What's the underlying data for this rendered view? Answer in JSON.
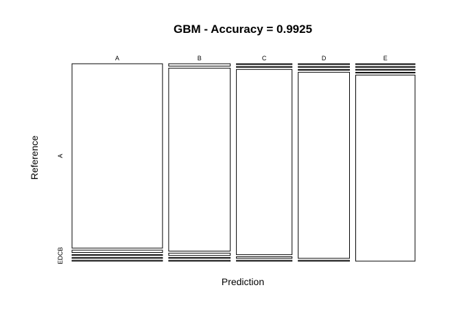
{
  "chart_data": {
    "type": "mosaic",
    "title": "GBM - Accuracy = 0.9925",
    "xlabel": "Prediction",
    "ylabel": "Reference",
    "x_categories": [
      "A",
      "B",
      "C",
      "D",
      "E"
    ],
    "y_categories": [
      "A",
      "B",
      "C",
      "D",
      "E"
    ],
    "y_tick_labels": [
      "A",
      "EDCB"
    ],
    "column_widths": [
      0.291,
      0.198,
      0.179,
      0.165,
      0.191
    ],
    "cells": [
      {
        "prediction": "A",
        "proportions": {
          "A": 0.925,
          "B": 0.012,
          "C": 0.004,
          "D": 0.004,
          "E": 0.004
        }
      },
      {
        "prediction": "B",
        "proportions": {
          "A": 0.012,
          "B": 0.938,
          "C": 0.012,
          "D": 0.004,
          "E": 0.004
        }
      },
      {
        "prediction": "C",
        "proportions": {
          "A": 0.004,
          "B": 0.004,
          "C": 0.946,
          "D": 0.008,
          "E": 0.004
        }
      },
      {
        "prediction": "D",
        "proportions": {
          "A": 0.004,
          "B": 0.004,
          "C": 0.004,
          "D": 0.96,
          "E": 0.004
        }
      },
      {
        "prediction": "E",
        "proportions": {
          "A": 0.004,
          "B": 0.004,
          "C": 0.004,
          "D": 0.004,
          "E": 0.97
        }
      }
    ]
  }
}
